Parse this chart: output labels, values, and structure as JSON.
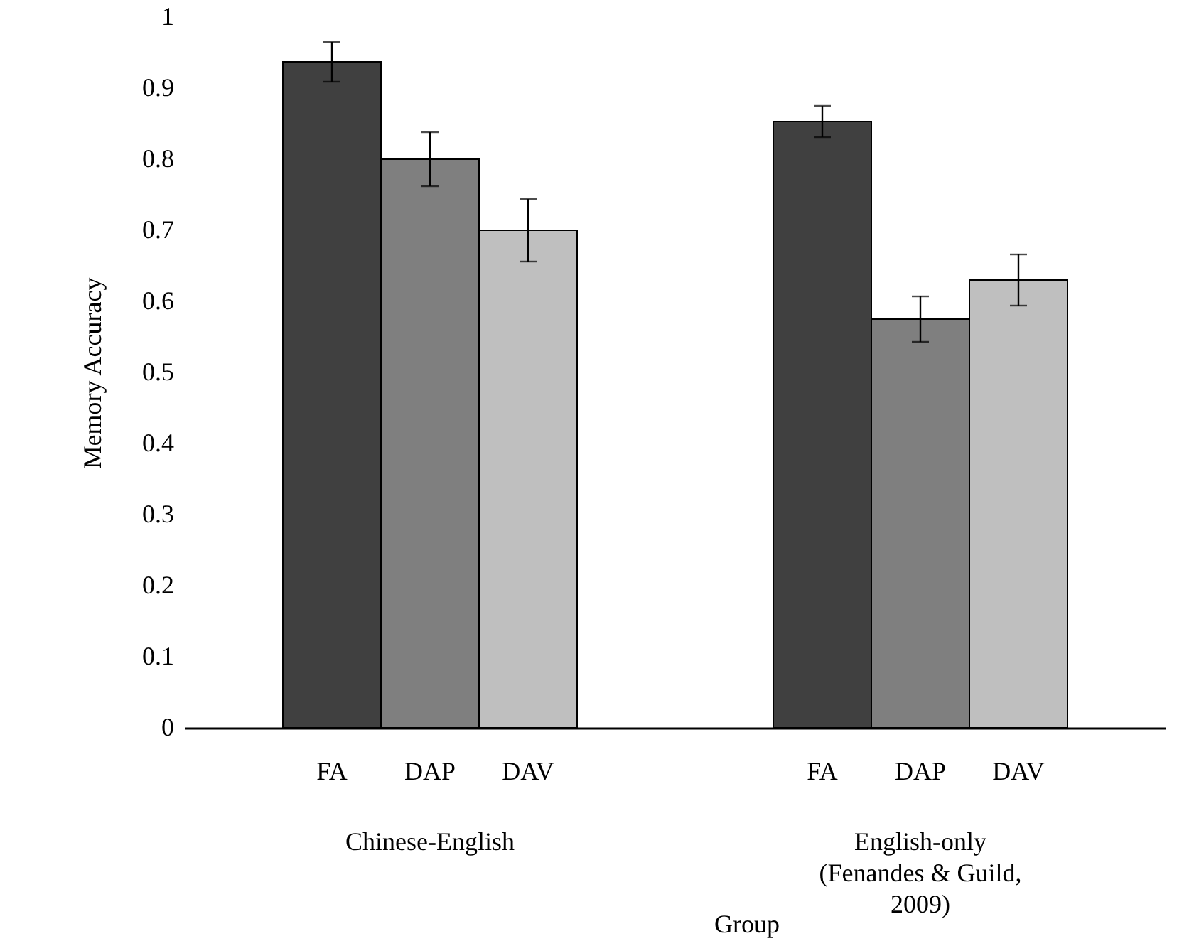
{
  "chart_data": {
    "type": "bar",
    "xlabel": "Group",
    "ylabel": "Memory Accuracy",
    "categories": [
      "FA",
      "DAP",
      "DAV",
      null,
      null,
      "FA",
      "DAP",
      "DAV"
    ],
    "values": [
      0.937,
      0.8,
      0.7,
      null,
      null,
      0.853,
      0.575,
      0.63
    ],
    "errors": [
      0.028,
      0.038,
      0.044,
      null,
      null,
      0.022,
      0.032,
      0.036
    ],
    "colors": [
      "#404040",
      "#7f7f7f",
      "#bfbfbf",
      null,
      null,
      "#404040",
      "#7f7f7f",
      "#bfbfbf"
    ],
    "ylim": [
      0,
      1
    ],
    "yticks": [
      0,
      0.1,
      0.2,
      0.3,
      0.4,
      0.5,
      0.6,
      0.7,
      0.8,
      0.9,
      1
    ],
    "annotations": [
      "Chinese-English",
      "English-only (Fenandes & Guild, 2009)"
    ],
    "grid": false
  }
}
